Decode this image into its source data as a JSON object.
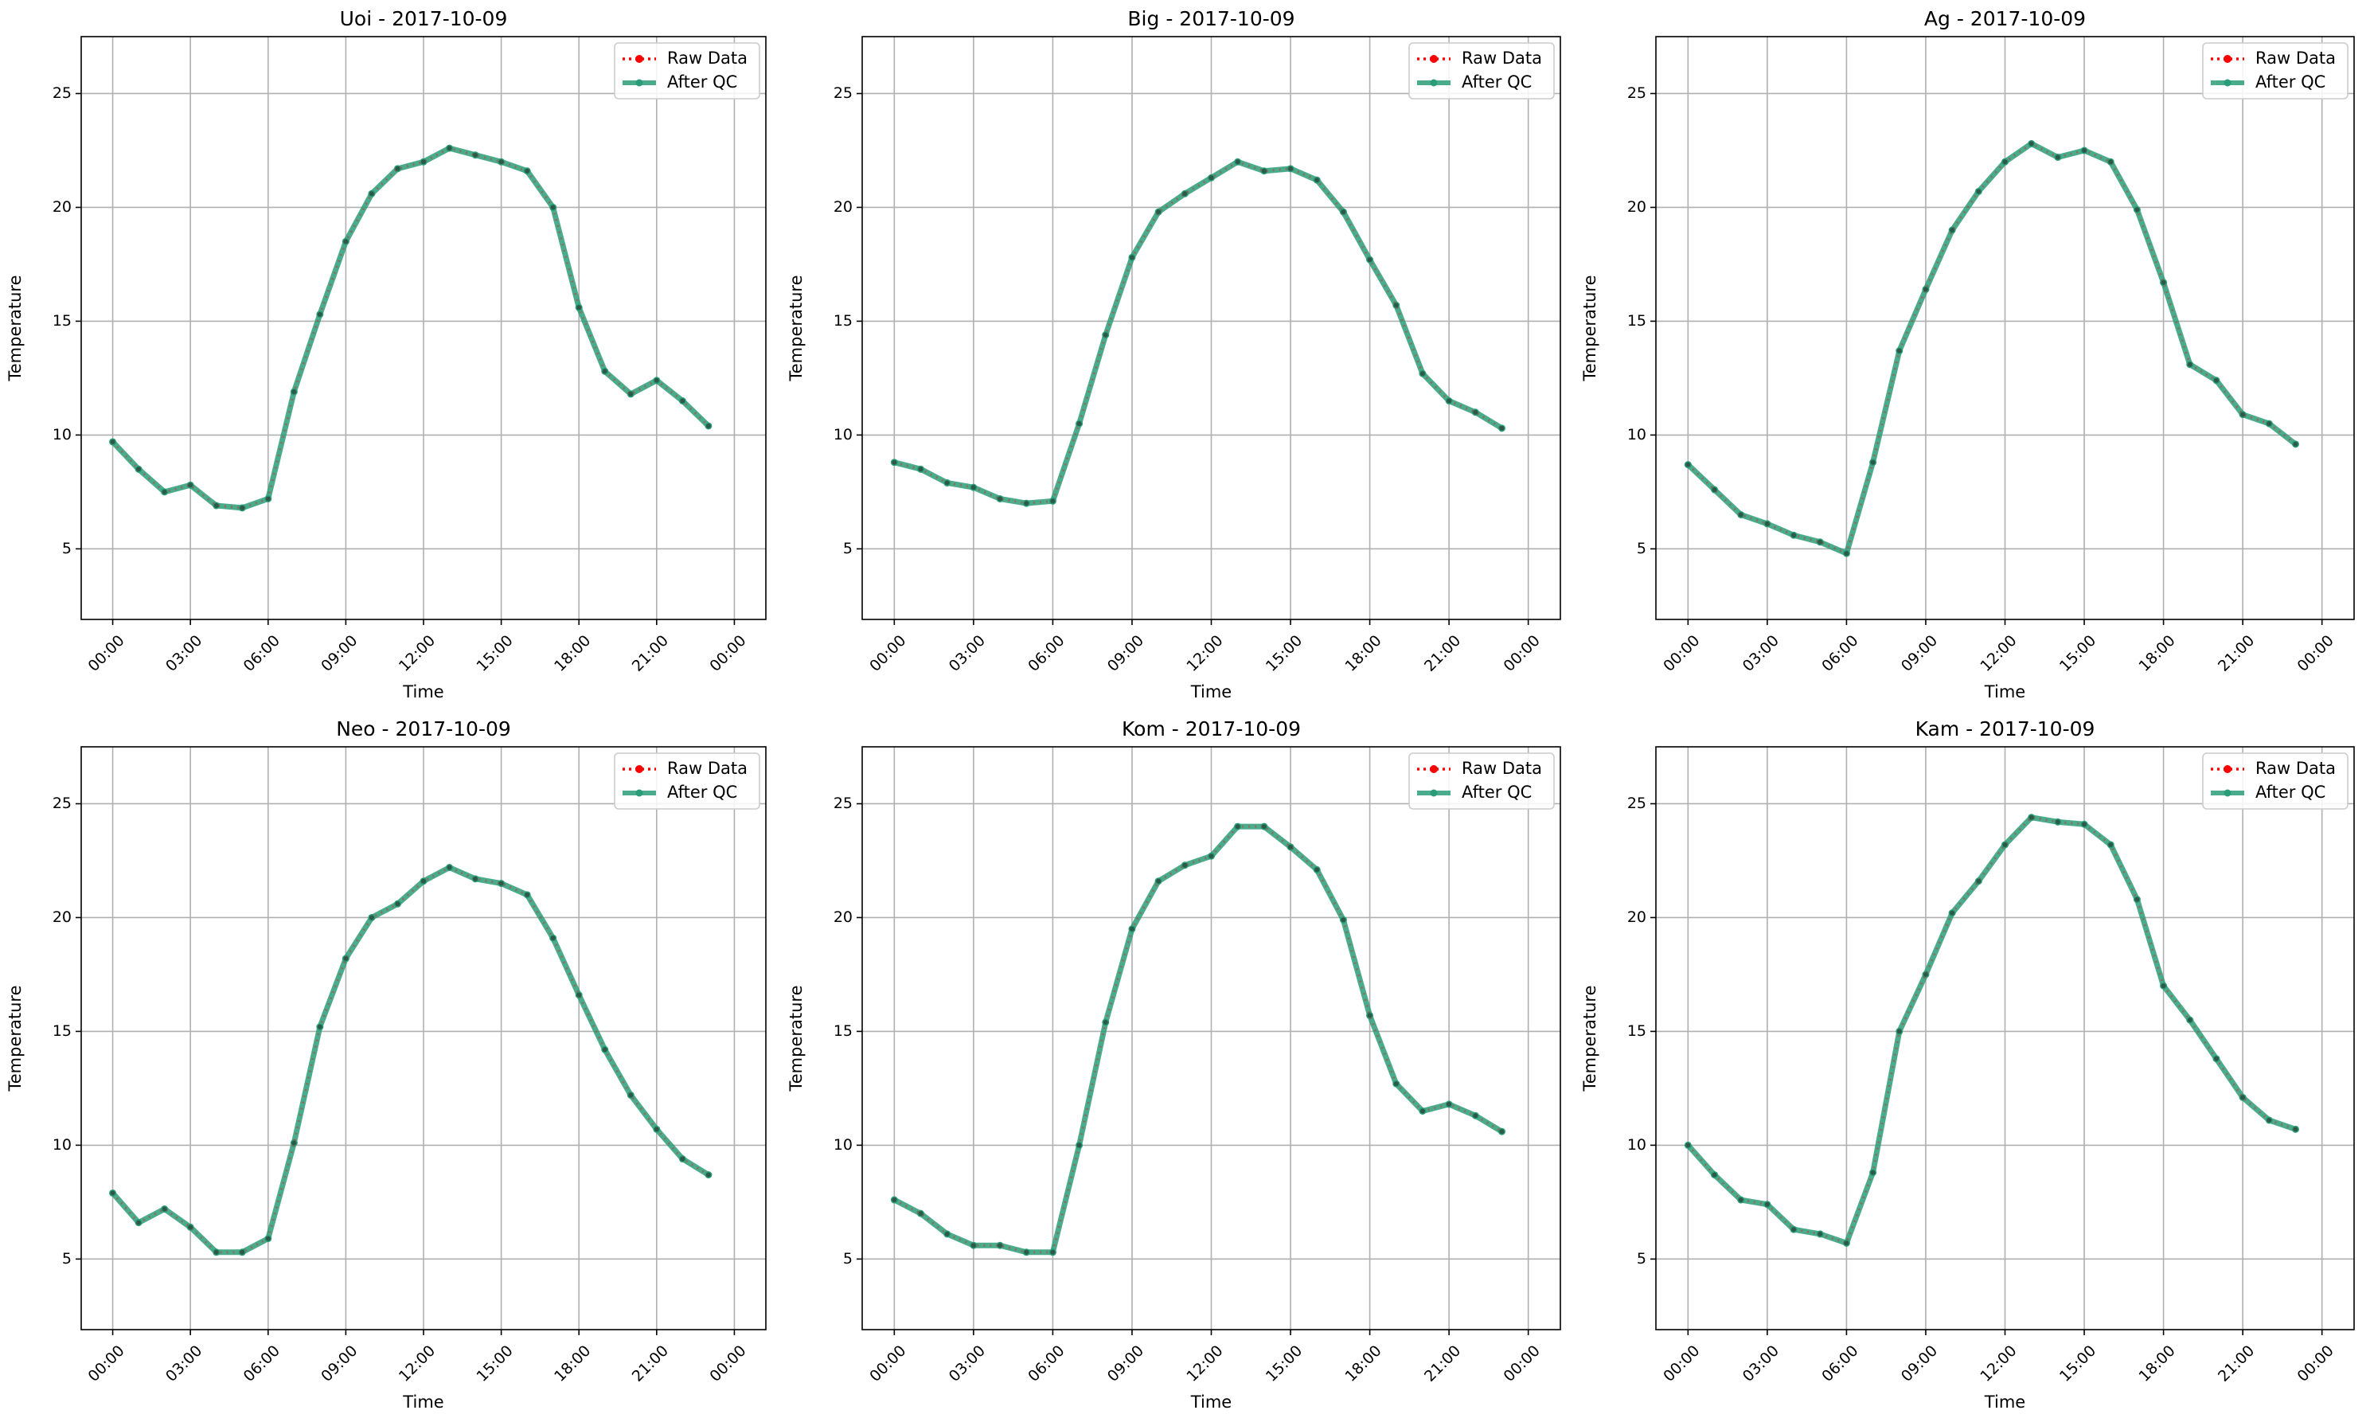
{
  "colors": {
    "raw": "#ff0000",
    "qc": "#2a9d78",
    "grid": "#b0b0b0",
    "axes": "#000000",
    "legend_border": "#cccccc"
  },
  "chart_data": [
    {
      "type": "line",
      "title": "Uoi - 2017-10-09",
      "xlabel": "Time",
      "ylabel": "Temperature",
      "x_ticks": [
        "00:00",
        "03:00",
        "06:00",
        "09:00",
        "12:00",
        "15:00",
        "18:00",
        "21:00",
        "00:00"
      ],
      "y_ticks": [
        5,
        10,
        15,
        20,
        25
      ],
      "ylim": [
        1.9,
        27.5
      ],
      "grid": true,
      "legend": "top-right",
      "series": [
        {
          "name": "Raw Data",
          "style": "dotted-red-markers",
          "values": [
            9.7,
            8.5,
            7.5,
            7.8,
            6.9,
            6.8,
            7.2,
            11.9,
            15.3,
            18.5,
            20.6,
            21.7,
            22.0,
            22.6,
            22.3,
            22.0,
            21.6,
            20.0,
            15.6,
            12.8,
            11.8,
            12.4,
            11.5,
            10.4
          ]
        },
        {
          "name": "After QC",
          "style": "solid-green-markers",
          "values": [
            9.7,
            8.5,
            7.5,
            7.8,
            6.9,
            6.8,
            7.2,
            11.9,
            15.3,
            18.5,
            20.6,
            21.7,
            22.0,
            22.6,
            22.3,
            22.0,
            21.6,
            20.0,
            15.6,
            12.8,
            11.8,
            12.4,
            11.5,
            10.4
          ]
        }
      ]
    },
    {
      "type": "line",
      "title": "Big - 2017-10-09",
      "xlabel": "Time",
      "ylabel": "Temperature",
      "x_ticks": [
        "00:00",
        "03:00",
        "06:00",
        "09:00",
        "12:00",
        "15:00",
        "18:00",
        "21:00",
        "00:00"
      ],
      "y_ticks": [
        5,
        10,
        15,
        20,
        25
      ],
      "ylim": [
        1.9,
        27.5
      ],
      "grid": true,
      "legend": "top-right",
      "series": [
        {
          "name": "Raw Data",
          "style": "dotted-red-markers",
          "values": [
            8.8,
            8.5,
            7.9,
            7.7,
            7.2,
            7.0,
            7.1,
            10.5,
            14.4,
            17.8,
            19.8,
            20.6,
            21.3,
            22.0,
            21.6,
            21.7,
            21.2,
            19.8,
            17.7,
            15.7,
            12.7,
            11.5,
            11.0,
            10.3
          ]
        },
        {
          "name": "After QC",
          "style": "solid-green-markers",
          "values": [
            8.8,
            8.5,
            7.9,
            7.7,
            7.2,
            7.0,
            7.1,
            10.5,
            14.4,
            17.8,
            19.8,
            20.6,
            21.3,
            22.0,
            21.6,
            21.7,
            21.2,
            19.8,
            17.7,
            15.7,
            12.7,
            11.5,
            11.0,
            10.3
          ]
        }
      ]
    },
    {
      "type": "line",
      "title": "Ag - 2017-10-09",
      "xlabel": "Time",
      "ylabel": "Temperature",
      "x_ticks": [
        "00:00",
        "03:00",
        "06:00",
        "09:00",
        "12:00",
        "15:00",
        "18:00",
        "21:00",
        "00:00"
      ],
      "y_ticks": [
        5,
        10,
        15,
        20,
        25
      ],
      "ylim": [
        1.9,
        27.5
      ],
      "grid": true,
      "legend": "top-right",
      "series": [
        {
          "name": "Raw Data",
          "style": "dotted-red-markers",
          "values": [
            8.7,
            7.6,
            6.5,
            6.1,
            5.6,
            5.3,
            4.8,
            8.8,
            13.7,
            16.4,
            19.0,
            20.7,
            22.0,
            22.8,
            22.2,
            22.5,
            22.0,
            19.9,
            16.7,
            13.1,
            12.4,
            10.9,
            10.5,
            9.6
          ]
        },
        {
          "name": "After QC",
          "style": "solid-green-markers",
          "values": [
            8.7,
            7.6,
            6.5,
            6.1,
            5.6,
            5.3,
            4.8,
            8.8,
            13.7,
            16.4,
            19.0,
            20.7,
            22.0,
            22.8,
            22.2,
            22.5,
            22.0,
            19.9,
            16.7,
            13.1,
            12.4,
            10.9,
            10.5,
            9.6
          ]
        }
      ]
    },
    {
      "type": "line",
      "title": "Neo - 2017-10-09",
      "xlabel": "Time",
      "ylabel": "Temperature",
      "x_ticks": [
        "00:00",
        "03:00",
        "06:00",
        "09:00",
        "12:00",
        "15:00",
        "18:00",
        "21:00",
        "00:00"
      ],
      "y_ticks": [
        5,
        10,
        15,
        20,
        25
      ],
      "ylim": [
        1.9,
        27.5
      ],
      "grid": true,
      "legend": "top-right",
      "series": [
        {
          "name": "Raw Data",
          "style": "dotted-red-markers",
          "values": [
            7.9,
            6.6,
            7.2,
            6.4,
            5.3,
            5.3,
            5.9,
            10.1,
            15.2,
            18.2,
            20.0,
            20.6,
            21.6,
            22.2,
            21.7,
            21.5,
            21.0,
            19.1,
            16.6,
            14.2,
            12.2,
            10.7,
            9.4,
            8.7
          ]
        },
        {
          "name": "After QC",
          "style": "solid-green-markers",
          "values": [
            7.9,
            6.6,
            7.2,
            6.4,
            5.3,
            5.3,
            5.9,
            10.1,
            15.2,
            18.2,
            20.0,
            20.6,
            21.6,
            22.2,
            21.7,
            21.5,
            21.0,
            19.1,
            16.6,
            14.2,
            12.2,
            10.7,
            9.4,
            8.7
          ]
        }
      ]
    },
    {
      "type": "line",
      "title": "Kom - 2017-10-09",
      "xlabel": "Time",
      "ylabel": "Temperature",
      "x_ticks": [
        "00:00",
        "03:00",
        "06:00",
        "09:00",
        "12:00",
        "15:00",
        "18:00",
        "21:00",
        "00:00"
      ],
      "y_ticks": [
        5,
        10,
        15,
        20,
        25
      ],
      "ylim": [
        1.9,
        27.5
      ],
      "grid": true,
      "legend": "top-right",
      "series": [
        {
          "name": "Raw Data",
          "style": "dotted-red-markers",
          "values": [
            7.6,
            7.0,
            6.1,
            5.6,
            5.6,
            5.3,
            5.3,
            10.0,
            15.4,
            19.5,
            21.6,
            22.3,
            22.7,
            24.0,
            24.0,
            23.1,
            22.1,
            19.9,
            15.7,
            12.7,
            11.5,
            11.8,
            11.3,
            10.6
          ]
        },
        {
          "name": "After QC",
          "style": "solid-green-markers",
          "values": [
            7.6,
            7.0,
            6.1,
            5.6,
            5.6,
            5.3,
            5.3,
            10.0,
            15.4,
            19.5,
            21.6,
            22.3,
            22.7,
            24.0,
            24.0,
            23.1,
            22.1,
            19.9,
            15.7,
            12.7,
            11.5,
            11.8,
            11.3,
            10.6
          ]
        }
      ]
    },
    {
      "type": "line",
      "title": "Kam - 2017-10-09",
      "xlabel": "Time",
      "ylabel": "Temperature",
      "x_ticks": [
        "00:00",
        "03:00",
        "06:00",
        "09:00",
        "12:00",
        "15:00",
        "18:00",
        "21:00",
        "00:00"
      ],
      "y_ticks": [
        5,
        10,
        15,
        20,
        25
      ],
      "ylim": [
        1.9,
        27.5
      ],
      "grid": true,
      "legend": "top-right",
      "series": [
        {
          "name": "Raw Data",
          "style": "dotted-red-markers",
          "values": [
            10.0,
            8.7,
            7.6,
            7.4,
            6.3,
            6.1,
            5.7,
            8.8,
            15.0,
            17.5,
            20.2,
            21.6,
            23.2,
            24.4,
            24.2,
            24.1,
            23.2,
            20.8,
            17.0,
            15.5,
            13.8,
            12.1,
            11.1,
            10.7
          ]
        },
        {
          "name": "After QC",
          "style": "solid-green-markers",
          "values": [
            10.0,
            8.7,
            7.6,
            7.4,
            6.3,
            6.1,
            5.7,
            8.8,
            15.0,
            17.5,
            20.2,
            21.6,
            23.2,
            24.4,
            24.2,
            24.1,
            23.2,
            20.8,
            17.0,
            15.5,
            13.8,
            12.1,
            11.1,
            10.7
          ]
        }
      ]
    }
  ]
}
